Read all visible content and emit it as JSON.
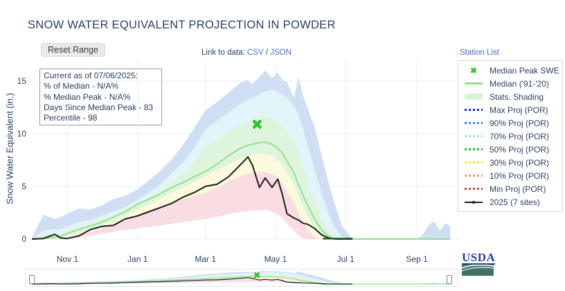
{
  "header": {
    "title": "SNOW WATER EQUIVALENT PROJECTION IN POWDER",
    "reset_button": "Reset Range",
    "link_to_data": {
      "label": "Link to data:",
      "csv": "CSV",
      "separator": " / ",
      "json": "JSON"
    },
    "station_list": "Station List"
  },
  "info_box": {
    "lines": [
      "Current as of 07/06/2025:",
      "% of Median - N/A%",
      "% Median Peak - N/A%",
      "Days Since Median Peak - 83",
      "Percentile - 98"
    ]
  },
  "legend": {
    "items": [
      {
        "label": "Median Peak SWE",
        "marker": "x",
        "color": "#2fc32f"
      },
      {
        "label": "Median ('91-'20)",
        "marker": "line",
        "color": "#8de08d"
      },
      {
        "label": "Stats. Shading",
        "marker": "band",
        "color": "#d9f3d9"
      },
      {
        "label": "Max Proj (POR)",
        "marker": "dots",
        "color": "#2222e0"
      },
      {
        "label": "90% Proj (POR)",
        "marker": "dots",
        "color": "#3a87e8"
      },
      {
        "label": "70% Proj (POR)",
        "marker": "dots",
        "color": "#9fe4f2"
      },
      {
        "label": "50% Proj (POR)",
        "marker": "dots",
        "color": "#2eb82e"
      },
      {
        "label": "30% Proj (POR)",
        "marker": "dots",
        "color": "#f5e622"
      },
      {
        "label": "10% Proj (POR)",
        "marker": "dots",
        "color": "#f29089"
      },
      {
        "label": "Min Proj (POR)",
        "marker": "dots",
        "color": "#e04343"
      },
      {
        "label": "2025 (7 sites)",
        "marker": "line-dot",
        "color": "#1a1a1a"
      }
    ]
  },
  "footer": {
    "usda_logo_text": "USDA"
  },
  "colors": {
    "text": "#2a3f5f",
    "link": "#4272c8",
    "grid": "#e7edf6",
    "band_blue": "#cfdef3",
    "band_cyan": "#e2f3fa",
    "band_green": "#dff4dc",
    "band_yellow": "#fcfadc",
    "band_pink": "#f9dde3",
    "median_line": "#8de08d",
    "line_2025": "#1a1a1a",
    "tail_2025": "#0e5c10",
    "peak_marker": "#2fc32f"
  },
  "chart_data": {
    "type": "line",
    "title": "SNOW WATER EQUIVALENT PROJECTION IN POWDER",
    "xlabel": "",
    "ylabel": "Snow Water Equivalent (in.)",
    "x_unit": "days_since_oct_1_water_year",
    "x_range_days": [
      0,
      364
    ],
    "ylim": [
      0,
      16.5
    ],
    "grid": true,
    "legend_position": "top-right",
    "y_ticks": {
      "values": [
        0,
        5,
        10,
        15
      ],
      "labels": [
        "0",
        "5",
        "10",
        "15"
      ]
    },
    "x_ticks": {
      "days": [
        31,
        92,
        151,
        212,
        273,
        335
      ],
      "labels": [
        "Nov 1",
        "Jan 1",
        "Mar 1",
        "May 1",
        "Jul 1",
        "Sep 1"
      ]
    },
    "x_days": [
      0,
      10,
      20,
      25,
      31,
      41,
      51,
      61,
      71,
      81,
      92,
      102,
      112,
      122,
      132,
      141,
      151,
      161,
      171,
      181,
      188,
      192,
      198,
      203,
      209,
      214,
      218,
      222,
      228,
      232,
      236,
      240,
      246,
      252,
      258,
      264,
      270,
      279,
      283,
      293,
      304,
      314,
      324,
      335,
      340,
      345,
      350,
      355,
      360,
      364
    ],
    "series": {
      "median_91_20": {
        "name": "Median ('91-'20)",
        "color": "#8de08d",
        "values": [
          0,
          0.05,
          0.15,
          0.25,
          0.55,
          0.9,
          1.25,
          1.6,
          2.1,
          2.6,
          3.3,
          3.8,
          4.3,
          4.9,
          5.4,
          5.9,
          6.4,
          7.1,
          7.9,
          8.6,
          8.9,
          9.0,
          9.15,
          9.2,
          9.0,
          8.6,
          8.2,
          7.4,
          6.3,
          5.2,
          4.1,
          3.2,
          1.9,
          0.9,
          0.25,
          0,
          0,
          0,
          0,
          0,
          0,
          0,
          0,
          0,
          0,
          0,
          0,
          0,
          0,
          0
        ]
      },
      "swe_2025": {
        "name": "2025 (7 sites)",
        "color": "#1a1a1a",
        "ends_day": 279,
        "zero_tail": {
          "from_day": 253,
          "to_day": 279,
          "color": "#0e5c10"
        },
        "values": [
          0,
          0.05,
          0.45,
          0.1,
          0.05,
          0.3,
          0.9,
          1.2,
          1.3,
          1.9,
          2.2,
          2.6,
          3.0,
          3.4,
          4.0,
          4.4,
          5.0,
          5.2,
          5.9,
          7.0,
          7.8,
          7.0,
          4.9,
          5.8,
          4.9,
          5.7,
          4.2,
          2.4,
          2.0,
          1.8,
          1.5,
          1.4,
          1.0,
          0.4,
          0.1,
          0,
          0,
          0,
          null,
          null,
          null,
          null,
          null,
          null,
          null,
          null,
          null,
          null,
          null,
          null
        ]
      },
      "max_proj": {
        "name": "Max Proj (POR)",
        "color": "#2222e0",
        "values": [
          0.1,
          2.3,
          1.9,
          2.1,
          2.4,
          2.9,
          2.8,
          3.2,
          3.8,
          4.1,
          4.7,
          5.6,
          6.5,
          7.6,
          9.0,
          10.5,
          12.2,
          13.0,
          13.9,
          14.8,
          15.1,
          14.7,
          15.4,
          16.0,
          15.3,
          15.8,
          15.1,
          14.9,
          13.4,
          15.4,
          13.6,
          12.4,
          10.6,
          8.0,
          5.4,
          3.2,
          1.2,
          0,
          0,
          0,
          0,
          0,
          0,
          0,
          0.4,
          1.3,
          1.7,
          0.8,
          1.5,
          1.2
        ]
      },
      "p90_proj": {
        "name": "90% Proj (POR)",
        "color": "#3a87e8",
        "values": [
          0,
          0.8,
          0.9,
          0.9,
          1.2,
          1.6,
          1.8,
          2.2,
          2.6,
          3.0,
          3.7,
          4.4,
          5.2,
          6.3,
          7.3,
          8.6,
          10.4,
          11.2,
          12.0,
          12.8,
          13.2,
          13.4,
          13.7,
          14.0,
          14.2,
          14.0,
          13.7,
          13.4,
          12.6,
          11.8,
          10.4,
          9.0,
          6.5,
          4.4,
          2.4,
          1.0,
          0.2,
          0,
          0,
          0,
          0,
          0,
          0,
          0,
          0,
          0,
          0,
          0,
          0,
          0
        ]
      },
      "p70_proj": {
        "name": "70% Proj (POR)",
        "color": "#9fe4f2",
        "values": [
          0,
          0.4,
          0.5,
          0.55,
          0.8,
          1.2,
          1.5,
          1.9,
          2.3,
          2.8,
          3.4,
          4.0,
          4.6,
          5.4,
          6.2,
          7.4,
          8.8,
          9.5,
          10.2,
          10.8,
          11.1,
          11.3,
          11.5,
          11.7,
          11.5,
          11.2,
          10.8,
          10.2,
          9.2,
          8.2,
          6.8,
          5.5,
          3.5,
          1.9,
          0.7,
          0.1,
          0,
          0,
          0,
          0,
          0,
          0,
          0,
          0,
          0,
          0,
          0,
          0,
          0,
          0
        ]
      },
      "p30_proj": {
        "name": "30% Proj (POR)",
        "color": "#f5e622",
        "values": [
          0,
          0.02,
          0.08,
          0.12,
          0.3,
          0.6,
          0.9,
          1.3,
          1.7,
          2.2,
          2.8,
          3.3,
          3.8,
          4.4,
          4.9,
          5.4,
          5.9,
          6.5,
          7.1,
          7.6,
          7.9,
          8.0,
          8.1,
          8.1,
          7.9,
          7.5,
          7.0,
          6.3,
          5.2,
          4.1,
          3.0,
          2.1,
          1.0,
          0.3,
          0,
          0,
          0,
          0,
          0,
          0,
          0,
          0,
          0,
          0,
          0,
          0,
          0,
          0,
          0,
          0
        ]
      },
      "p10_proj": {
        "name": "10% Proj (POR)",
        "color": "#f29089",
        "values": [
          0,
          0,
          0.04,
          0.06,
          0.15,
          0.4,
          0.65,
          1.0,
          1.35,
          1.75,
          2.3,
          2.7,
          3.0,
          3.4,
          3.8,
          4.1,
          4.4,
          4.9,
          5.5,
          6.0,
          6.2,
          6.3,
          6.4,
          6.4,
          6.2,
          5.8,
          5.3,
          4.5,
          3.5,
          2.5,
          1.6,
          0.9,
          0.2,
          0,
          0,
          0,
          0,
          0,
          0,
          0,
          0,
          0,
          0,
          0,
          0,
          0,
          0,
          0,
          0,
          0
        ]
      },
      "min_proj": {
        "name": "Min Proj (POR)",
        "color": "#e04343",
        "values": [
          0,
          0,
          0,
          0,
          0.05,
          0.15,
          0.3,
          0.5,
          0.7,
          0.85,
          1.0,
          1.15,
          1.3,
          1.45,
          1.6,
          1.75,
          1.9,
          2.1,
          2.35,
          2.55,
          2.65,
          2.7,
          2.75,
          2.75,
          2.6,
          2.3,
          2.0,
          1.5,
          0.8,
          0.3,
          0.05,
          0,
          0,
          0,
          0,
          0,
          0,
          0,
          0,
          0,
          0,
          0,
          0,
          0,
          0,
          0,
          0,
          0,
          0,
          0
        ]
      }
    },
    "bands": [
      {
        "name": "max_to_90",
        "upper": "max_proj",
        "lower": "p90_proj",
        "fill": "#cfdef3"
      },
      {
        "name": "90_to_70",
        "upper": "p90_proj",
        "lower": "p70_proj",
        "fill": "#e2f3fa"
      },
      {
        "name": "70_to_30",
        "upper": "p70_proj",
        "lower": "p30_proj",
        "fill": "#dff4dc"
      },
      {
        "name": "30_to_10",
        "upper": "p30_proj",
        "lower": "p10_proj",
        "fill": "#fcfadc"
      },
      {
        "name": "10_to_min",
        "upper": "p10_proj",
        "lower": "min_proj",
        "fill": "#f9dde3"
      }
    ],
    "median_peak_marker": {
      "day": 196,
      "value": 10.9,
      "color": "#2fc32f"
    }
  }
}
